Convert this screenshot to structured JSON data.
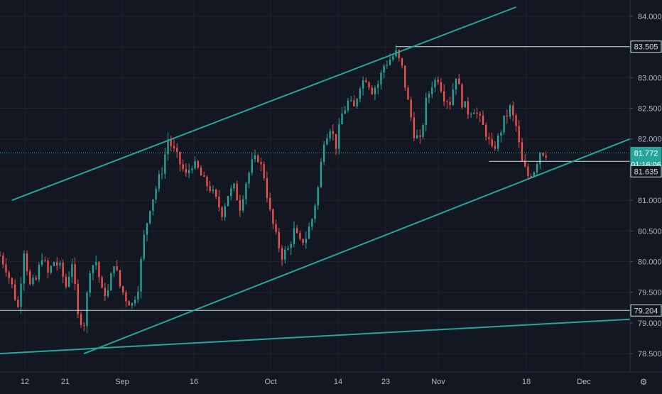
{
  "theme": {
    "background": "#131722",
    "grid": "#1e222d",
    "axis_text": "#b2b5be",
    "up_color": "#26a69a",
    "down_color": "#ef5350",
    "trendline_color": "#26a69a",
    "hline_color": "#c8e6e2",
    "label_bg": "#131722",
    "label_border": "#26a69a"
  },
  "chart_data": {
    "type": "candlestick",
    "title": "",
    "xlabel": "",
    "ylabel": "",
    "ylim": [
      78.2,
      84.15
    ],
    "x_ticks": [
      "12",
      "21",
      "Sep",
      "16",
      "Oct",
      "14",
      "23",
      "Nov",
      "18",
      "Dec"
    ],
    "y_ticks": [
      "84.000",
      "83.500",
      "83.000",
      "82.500",
      "82.000",
      "81.500",
      "81.000",
      "80.500",
      "80.000",
      "79.500",
      "79.000",
      "78.500"
    ],
    "price_labels": {
      "high_level": "83.505",
      "current_price": "81.772",
      "countdown": "01:16:06",
      "recent_low": "81.635",
      "support_level": "79.204"
    },
    "horizontal_lines": [
      {
        "name": "high-level-line",
        "value": 83.505
      },
      {
        "name": "support-level-line",
        "value": 79.204
      }
    ],
    "trendlines": [
      {
        "name": "channel-upper",
        "from": {
          "t": 2,
          "p": 81.0
        },
        "to": {
          "t": 86,
          "p": 84.15
        }
      },
      {
        "name": "channel-lower",
        "from": {
          "t": 14,
          "p": 78.5
        },
        "to": {
          "t": 105,
          "p": 82.0
        }
      },
      {
        "name": "long-base",
        "from": {
          "t": 0,
          "p": 78.5
        },
        "to": {
          "t": 105,
          "p": 79.06
        }
      }
    ],
    "candles_note": "price path (time index, close) — candles generated around this path",
    "price_path": [
      [
        0,
        80.1
      ],
      [
        1,
        79.9
      ],
      [
        2,
        79.6
      ],
      [
        3,
        79.25
      ],
      [
        4,
        80.2
      ],
      [
        5,
        79.6
      ],
      [
        6,
        79.7
      ],
      [
        7,
        80.1
      ],
      [
        8,
        79.8
      ],
      [
        9,
        80.0
      ],
      [
        10,
        79.9
      ],
      [
        11,
        79.6
      ],
      [
        12,
        80.0
      ],
      [
        13,
        79.1
      ],
      [
        14,
        79.0
      ],
      [
        15,
        79.9
      ],
      [
        16,
        80.0
      ],
      [
        17,
        79.5
      ],
      [
        18,
        79.5
      ],
      [
        19,
        80.0
      ],
      [
        20,
        79.6
      ],
      [
        21,
        79.4
      ],
      [
        22,
        79.3
      ],
      [
        23,
        79.6
      ],
      [
        24,
        80.4
      ],
      [
        25,
        80.9
      ],
      [
        26,
        81.2
      ],
      [
        27,
        81.5
      ],
      [
        28,
        82.0
      ],
      [
        29,
        81.8
      ],
      [
        30,
        81.6
      ],
      [
        31,
        81.4
      ],
      [
        32,
        81.6
      ],
      [
        33,
        81.5
      ],
      [
        34,
        81.3
      ],
      [
        35,
        81.2
      ],
      [
        36,
        81.0
      ],
      [
        37,
        80.8
      ],
      [
        38,
        81.1
      ],
      [
        39,
        81.2
      ],
      [
        40,
        80.9
      ],
      [
        41,
        81.3
      ],
      [
        42,
        81.6
      ],
      [
        43,
        81.7
      ],
      [
        44,
        81.4
      ],
      [
        45,
        80.8
      ],
      [
        46,
        80.4
      ],
      [
        47,
        80.1
      ],
      [
        48,
        80.2
      ],
      [
        49,
        80.5
      ],
      [
        50,
        80.3
      ],
      [
        51,
        80.4
      ],
      [
        52,
        80.7
      ],
      [
        53,
        81.2
      ],
      [
        54,
        82.0
      ],
      [
        55,
        82.2
      ],
      [
        56,
        81.9
      ],
      [
        57,
        82.4
      ],
      [
        58,
        82.6
      ],
      [
        59,
        82.5
      ],
      [
        60,
        82.9
      ],
      [
        61,
        83.0
      ],
      [
        62,
        82.8
      ],
      [
        63,
        82.9
      ],
      [
        64,
        83.2
      ],
      [
        65,
        83.3
      ],
      [
        66,
        83.4
      ],
      [
        67,
        83.15
      ],
      [
        68,
        82.6
      ],
      [
        69,
        82.1
      ],
      [
        70,
        81.95
      ],
      [
        71,
        82.6
      ],
      [
        72,
        82.9
      ],
      [
        73,
        83.0
      ],
      [
        74,
        82.7
      ],
      [
        75,
        82.6
      ],
      [
        76,
        83.05
      ],
      [
        77,
        82.6
      ],
      [
        78,
        82.45
      ],
      [
        79,
        82.5
      ],
      [
        80,
        82.3
      ],
      [
        81,
        82.1
      ],
      [
        82,
        81.8
      ],
      [
        83,
        82.0
      ],
      [
        84,
        82.3
      ],
      [
        85,
        82.5
      ],
      [
        86,
        82.2
      ],
      [
        87,
        81.6
      ],
      [
        88,
        81.4
      ],
      [
        89,
        81.5
      ],
      [
        90,
        81.8
      ],
      [
        91,
        81.77
      ]
    ]
  }
}
